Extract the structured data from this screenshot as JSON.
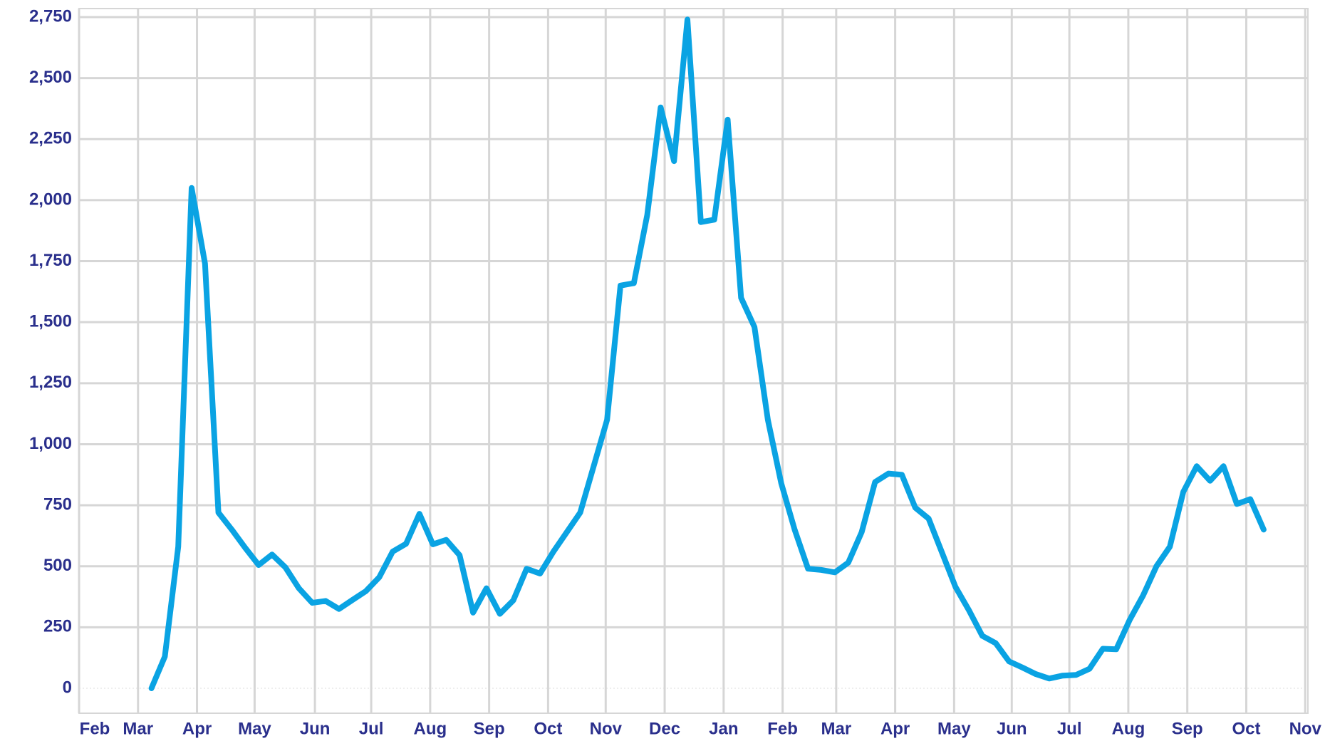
{
  "chart_data": {
    "type": "line",
    "x": [
      0,
      1,
      2,
      3,
      4,
      5,
      6,
      7,
      8,
      9,
      10,
      11,
      12,
      13,
      14,
      15,
      16,
      17,
      18,
      19,
      20,
      21,
      22,
      23,
      24,
      25,
      26,
      27,
      28,
      29,
      30,
      31,
      32,
      33,
      34,
      35,
      36,
      37,
      38,
      39,
      40,
      41,
      42,
      43,
      44,
      45,
      46,
      47,
      48,
      49,
      50,
      51,
      52,
      53,
      54,
      55,
      56,
      57,
      58,
      59,
      60,
      61,
      62,
      63,
      64,
      65,
      66,
      67,
      68,
      69,
      70,
      71,
      72,
      73,
      74,
      75,
      76,
      77,
      78,
      79,
      80,
      81,
      82,
      83
    ],
    "series": [
      {
        "color": "#0aa3e3",
        "values": [
          0,
          130,
          580,
          2050,
          1740,
          720,
          650,
          575,
          505,
          548,
          495,
          410,
          350,
          358,
          325,
          362,
          398,
          455,
          560,
          592,
          715,
          590,
          608,
          545,
          310,
          410,
          305,
          360,
          490,
          470,
          560,
          640,
          720,
          910,
          1100,
          1650,
          1660,
          1940,
          2380,
          2160,
          2740,
          1910,
          1920,
          2330,
          1600,
          1480,
          1100,
          840,
          650,
          490,
          485,
          475,
          515,
          640,
          845,
          880,
          875,
          740,
          695,
          555,
          415,
          320,
          215,
          185,
          110,
          85,
          58,
          40,
          52,
          55,
          80,
          162,
          160,
          280,
          380,
          500,
          580,
          805,
          910,
          850,
          910,
          755,
          775,
          650
        ]
      }
    ],
    "xlim": [
      -5.4,
      86.3
    ],
    "xticks": [
      {
        "value": -5.4,
        "label": "Feb"
      },
      {
        "value": -1.0,
        "label": "Mar"
      },
      {
        "value": 3.4,
        "label": "Apr"
      },
      {
        "value": 7.7,
        "label": "May"
      },
      {
        "value": 12.2,
        "label": "Jun"
      },
      {
        "value": 16.4,
        "label": "Jul"
      },
      {
        "value": 20.8,
        "label": "Aug"
      },
      {
        "value": 25.2,
        "label": "Sep"
      },
      {
        "value": 29.6,
        "label": "Oct"
      },
      {
        "value": 33.9,
        "label": "Nov"
      },
      {
        "value": 38.3,
        "label": "Dec"
      },
      {
        "value": 42.7,
        "label": "Jan"
      },
      {
        "value": 47.1,
        "label": "Feb"
      },
      {
        "value": 51.1,
        "label": "Mar"
      },
      {
        "value": 55.5,
        "label": "Apr"
      },
      {
        "value": 59.9,
        "label": "May"
      },
      {
        "value": 64.2,
        "label": "Jun"
      },
      {
        "value": 68.5,
        "label": "Jul"
      },
      {
        "value": 72.9,
        "label": "Aug"
      },
      {
        "value": 77.3,
        "label": "Sep"
      },
      {
        "value": 81.7,
        "label": "Oct"
      },
      {
        "value": 86.1,
        "label": "Nov"
      }
    ],
    "ylim": [
      0,
      2750
    ],
    "yticks": [
      0,
      250,
      500,
      750,
      {
        "value": 1000,
        "label": "1,000"
      },
      {
        "value": 1250,
        "label": "1,250"
      },
      {
        "value": 1500,
        "label": "1,500"
      },
      {
        "value": 1750,
        "label": "1,750"
      },
      {
        "value": 2000,
        "label": "2,000"
      },
      {
        "value": 2250,
        "label": "2,250"
      },
      {
        "value": 2500,
        "label": "2,500"
      },
      {
        "value": 2750,
        "label": "2,750"
      }
    ],
    "grid": true
  }
}
